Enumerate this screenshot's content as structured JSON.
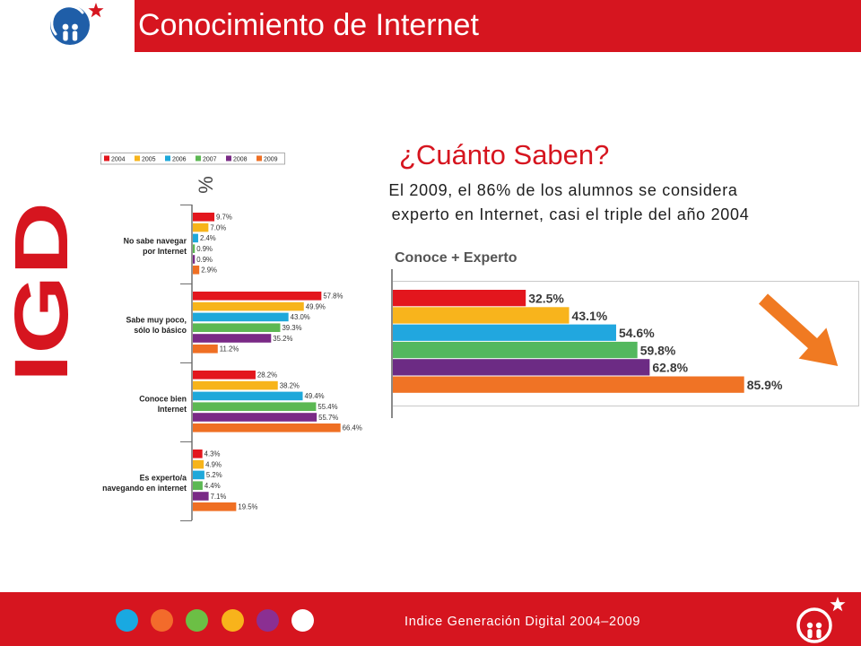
{
  "theme": {
    "brand_red": "#d6151f"
  },
  "header": {
    "title": "Conocimiento de Internet"
  },
  "side_brand": {
    "text": "IGD"
  },
  "summary": {
    "heading": "¿Cuánto Saben?",
    "line1": "El 2009, el 86% de los alumnos se considera",
    "line2": "experto en Internet, casi el triple del año 2004"
  },
  "chart_data": [
    {
      "type": "bar",
      "orientation": "horizontal",
      "unit_label": "%",
      "legend_position": "top",
      "categories": [
        "No sabe navegar\npor Internet",
        "Sabe muy poco,\nsólo lo básico",
        "Conoce bien\nInternet",
        "Es experto/a\nnavegando en internet"
      ],
      "series": [
        {
          "name": "2004",
          "color": "#e3161d",
          "values": [
            9.7,
            57.8,
            28.2,
            4.3
          ]
        },
        {
          "name": "2005",
          "color": "#f7b41b",
          "values": [
            7.0,
            49.9,
            38.2,
            4.9
          ]
        },
        {
          "name": "2006",
          "color": "#1ea8da",
          "values": [
            2.4,
            43.0,
            49.4,
            5.2
          ]
        },
        {
          "name": "2007",
          "color": "#5cb853",
          "values": [
            0.9,
            39.3,
            55.4,
            4.4
          ]
        },
        {
          "name": "2008",
          "color": "#7a2a86",
          "values": [
            0.9,
            35.2,
            55.7,
            7.1
          ]
        },
        {
          "name": "2009",
          "color": "#ef6f23",
          "values": [
            2.9,
            11.2,
            66.4,
            19.5
          ]
        }
      ]
    },
    {
      "type": "bar",
      "orientation": "horizontal",
      "title": "Conoce + Experto",
      "values": [
        32.5,
        43.1,
        54.6,
        59.8,
        62.8,
        85.9
      ],
      "colors": [
        "#e3161d",
        "#f8b41c",
        "#21a7df",
        "#53b85e",
        "#6c2b84",
        "#f07325"
      ]
    }
  ],
  "footer": {
    "text": "Indice Generación Digital 2004–2009",
    "dots": [
      "#19a9e1",
      "#f36b2b",
      "#6cbf45",
      "#f8b31b",
      "#8b2f92",
      "#ffffff"
    ]
  }
}
